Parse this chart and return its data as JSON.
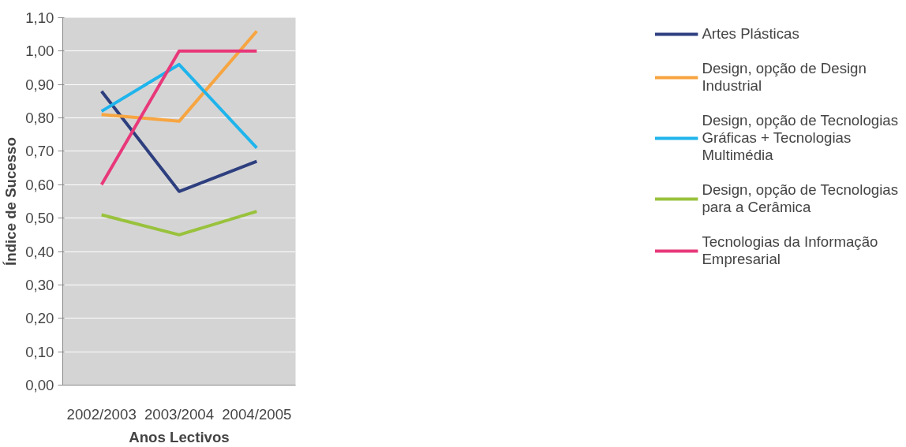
{
  "chart_data": {
    "type": "line",
    "xlabel": "Anos Lectivos",
    "ylabel": "Índice de Sucesso",
    "categories": [
      "2002/2003",
      "2003/2004",
      "2004/2005"
    ],
    "series": [
      {
        "name": "Artes Plásticas",
        "color": "#2e3f7f",
        "values": [
          0.88,
          0.58,
          0.67
        ]
      },
      {
        "name": "Design, opção de Design Industrial",
        "color": "#f7a541",
        "values": [
          0.81,
          0.79,
          1.06
        ]
      },
      {
        "name": "Design, opção de Tecnologias Gráficas + Tecnologias Multimédia",
        "color": "#1fb4ec",
        "values": [
          0.82,
          0.96,
          0.71
        ]
      },
      {
        "name": "Design, opção de Tecnologias para a Cerâmica",
        "color": "#99c23c",
        "values": [
          0.51,
          0.45,
          0.52
        ]
      },
      {
        "name": "Tecnologias da Informação Empresarial",
        "color": "#e8387a",
        "values": [
          0.6,
          1.0,
          1.0
        ]
      }
    ],
    "ylim": [
      0,
      1.1
    ],
    "yticks": [
      {
        "value": 0,
        "label": "0,00"
      },
      {
        "value": 0.1,
        "label": "0,10"
      },
      {
        "value": 0.2,
        "label": "0,20"
      },
      {
        "value": 0.3,
        "label": "0,30"
      },
      {
        "value": 0.4,
        "label": "0,40"
      },
      {
        "value": 0.5,
        "label": "0,50"
      },
      {
        "value": 0.6,
        "label": "0,60"
      },
      {
        "value": 0.7,
        "label": "0,70"
      },
      {
        "value": 0.8,
        "label": "0,80"
      },
      {
        "value": 0.9,
        "label": "0,90"
      },
      {
        "value": 1.0,
        "label": "1,00"
      },
      {
        "value": 1.1,
        "label": "1,10"
      }
    ],
    "grid": "y",
    "legend": "right",
    "marker": "none",
    "line_style": "solid"
  }
}
